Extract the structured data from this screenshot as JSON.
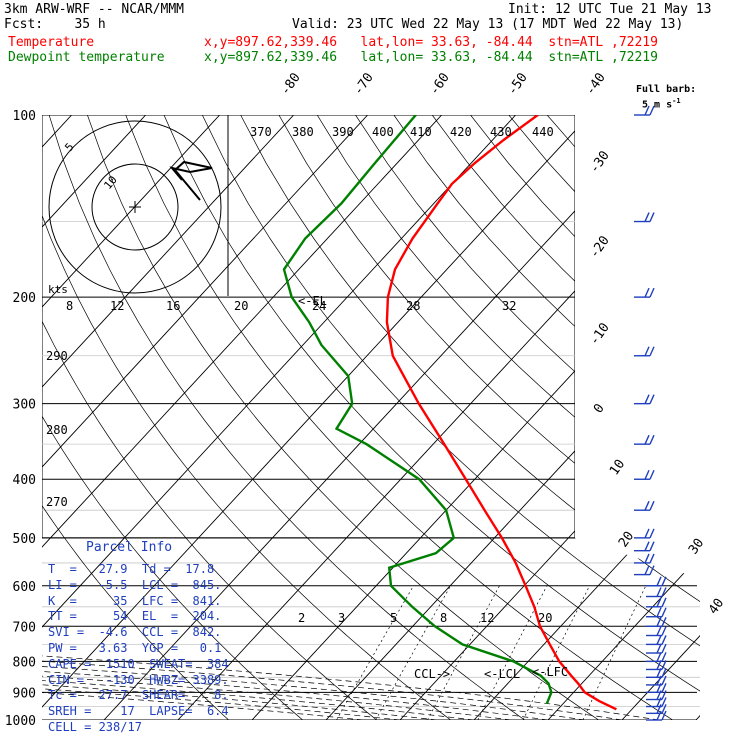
{
  "header": {
    "line1_left": "3km ARW-WRF -- NCAR/MMM",
    "line1_right": "Init: 12 UTC Tue 21 May 13",
    "line2_left": "Fcst:    35 h",
    "line2_right": "Valid: 23 UTC Wed 22 May 13 (17 MDT Wed 22 May 13)",
    "temp_label": "Temperature",
    "dew_label": "Dewpoint temperature",
    "temp_info": "x,y=897.62,339.46   lat,lon= 33.63, -84.44  stn=ATL ,72219",
    "dew_info": "x,y=897.62,339.46   lat,lon= 33.63, -84.44  stn=ATL ,72219",
    "barb_label_1": "Full barb:",
    "barb_label_2": "5 m s",
    "barb_label_sup": "-1",
    "kts_label": "kts"
  },
  "parcel_info": {
    "title": "Parcel Info",
    "lines": [
      "T  =   27.9  Td =  17.8",
      "LI =   -5.5  LCL =  845.",
      "K  =     35  LFC =  841.",
      "TT =     54  EL  =  204.",
      "SVI =  -4.6  CCL =  842.",
      "PW =   3.63  YGP =   0.1",
      "CAPE =  1510  SWEAT=  384",
      "CIN =   -130  HWBZ= 3389.",
      "Tc =   27.7  SHEAR=    8.",
      "SREH =    17  LAPSE=  6.4",
      "CELL = 238/17"
    ]
  },
  "chart_data": {
    "type": "line",
    "title": "",
    "xlabel": "",
    "ylabel": "",
    "pressure_ticks": [
      100,
      200,
      300,
      400,
      500,
      600,
      700,
      800,
      900,
      1000
    ],
    "pressure_labels": [
      "100",
      "200",
      "300",
      "400",
      "500",
      "600",
      "700",
      "800",
      "900",
      "1000"
    ],
    "temperature_ticks": [
      -80,
      -70,
      -60,
      -50,
      -40,
      -30,
      -20,
      -10,
      0,
      10,
      20,
      30,
      40
    ],
    "temperature_labels": [
      "-80",
      "-70",
      "-60",
      "-50",
      "-40",
      "-30",
      "-20",
      "-10",
      "0",
      "10",
      "20",
      "30",
      "40"
    ],
    "theta_labels": [
      "370",
      "380",
      "390",
      "400",
      "410",
      "420",
      "430",
      "440",
      "290",
      "280",
      "270"
    ],
    "mixing_ratio_labels": [
      "2",
      "3",
      "5",
      "8",
      "12",
      "20"
    ],
    "hodograph_labels": [
      "8",
      "12",
      "16",
      "20",
      "24",
      "28",
      "32"
    ],
    "hodograph_ring_labels": [
      "5",
      "10"
    ],
    "levels": {
      "lcl_label": "<-LCL",
      "lfc_label": "<-LFC",
      "ccl_label": "CCL->",
      "el_label": "<-EL"
    },
    "series": [
      {
        "name": "Temperature",
        "color": "#ff0000",
        "pressure": [
          960,
          930,
          900,
          870,
          845,
          800,
          750,
          700,
          650,
          600,
          550,
          500,
          450,
          400,
          350,
          300,
          250,
          220,
          200,
          180,
          160,
          140,
          130,
          120,
          110,
          100
        ],
        "temperature": [
          27.9,
          24.5,
          21.5,
          19.5,
          17.6,
          14.2,
          10.8,
          7.2,
          4.0,
          0.2,
          -4.0,
          -9.0,
          -14.8,
          -21.2,
          -28.5,
          -37.0,
          -46.5,
          -51.5,
          -54.5,
          -57.0,
          -58.5,
          -59.5,
          -60.0,
          -59.5,
          -58.5,
          -57.0
        ]
      },
      {
        "name": "Dewpoint temperature",
        "color": "#008000",
        "pressure": [
          940,
          900,
          870,
          845,
          800,
          750,
          700,
          650,
          600,
          560,
          530,
          500,
          450,
          400,
          350,
          330,
          300,
          270,
          240,
          220,
          200,
          180,
          160,
          140,
          120,
          100
        ],
        "temperature": [
          17.8,
          17.0,
          15.5,
          13.5,
          8.0,
          -1.0,
          -7.0,
          -12.5,
          -18.0,
          -20.5,
          -16.0,
          -15.5,
          -20.0,
          -27.5,
          -39.0,
          -45.0,
          -46.0,
          -50.0,
          -57.5,
          -62.0,
          -67.5,
          -72.0,
          -73.0,
          -72.5,
          -73.0,
          -73.5
        ]
      }
    ],
    "wind_barbs_pressure": [
      1000,
      975,
      950,
      925,
      900,
      875,
      850,
      825,
      800,
      775,
      750,
      725,
      700,
      675,
      650,
      625,
      600,
      575,
      550,
      525,
      500,
      450,
      400,
      350,
      300,
      250,
      200,
      150,
      100
    ]
  }
}
